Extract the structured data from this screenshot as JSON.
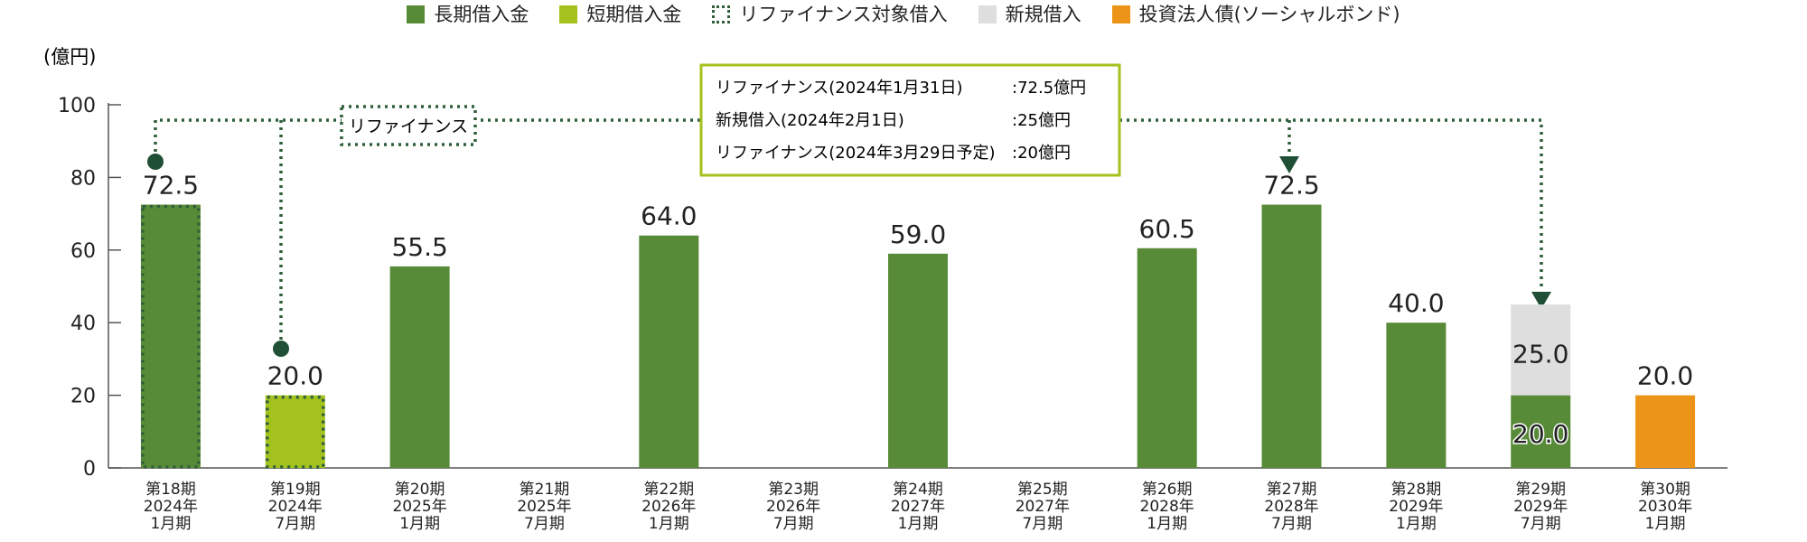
{
  "legend": [
    {
      "label": "長期借入金",
      "color": "#588b38",
      "style": "solid"
    },
    {
      "label": "短期借入金",
      "color": "#a4c21e",
      "style": "solid"
    },
    {
      "label": "リファイナンス対象借入",
      "color": "#2f5f3a",
      "style": "dotted"
    },
    {
      "label": "新規借入",
      "color": "#dedede",
      "style": "solid"
    },
    {
      "label": "投資法人債(ソーシャルボンド)",
      "color": "#ec9417",
      "style": "solid"
    }
  ],
  "refinance_label": "リファイナンス",
  "info_box": {
    "lines": [
      {
        "label": "リファイナンス(2024年1月31日)",
        "value": ":72.5億円"
      },
      {
        "label": "新規借入(2024年2月1日)",
        "value": ":25億円"
      },
      {
        "label": "リファイナンス(2024年3月29日予定)",
        "value": ":20億円"
      }
    ]
  },
  "colors": {
    "long": "#588b38",
    "short": "#a4c21e",
    "new": "#dedede",
    "bond": "#ec9417",
    "accent": "#2f5f3a",
    "box_border": "#a4c21e"
  },
  "chart_data": {
    "type": "bar",
    "stacked": true,
    "ylabel": "(億円)",
    "ylim": [
      0,
      100
    ],
    "yticks": [
      0,
      20,
      40,
      60,
      80,
      100
    ],
    "categories": [
      [
        "第18期",
        "2024年",
        "1月期"
      ],
      [
        "第19期",
        "2024年",
        "7月期"
      ],
      [
        "第20期",
        "2025年",
        "1月期"
      ],
      [
        "第21期",
        "2025年",
        "7月期"
      ],
      [
        "第22期",
        "2026年",
        "1月期"
      ],
      [
        "第23期",
        "2026年",
        "7月期"
      ],
      [
        "第24期",
        "2027年",
        "1月期"
      ],
      [
        "第25期",
        "2027年",
        "7月期"
      ],
      [
        "第26期",
        "2028年",
        "1月期"
      ],
      [
        "第27期",
        "2028年",
        "7月期"
      ],
      [
        "第28期",
        "2029年",
        "1月期"
      ],
      [
        "第29期",
        "2029年",
        "7月期"
      ],
      [
        "第30期",
        "2030年",
        "1月期"
      ]
    ],
    "series": [
      {
        "name": "長期借入金",
        "color": "#588b38",
        "values": [
          72.5,
          0,
          55.5,
          0,
          64.0,
          0,
          59.0,
          0,
          60.5,
          72.5,
          40.0,
          20.0,
          0
        ]
      },
      {
        "name": "短期借入金",
        "color": "#a4c21e",
        "values": [
          0,
          20.0,
          0,
          0,
          0,
          0,
          0,
          0,
          0,
          0,
          0,
          0,
          0
        ]
      },
      {
        "name": "新規借入",
        "color": "#dedede",
        "values": [
          0,
          0,
          0,
          0,
          0,
          0,
          0,
          0,
          0,
          0,
          0,
          25.0,
          0
        ]
      },
      {
        "name": "投資法人債(ソーシャルボンド)",
        "color": "#ec9417",
        "values": [
          0,
          0,
          0,
          0,
          0,
          0,
          0,
          0,
          0,
          0,
          0,
          0,
          20.0
        ]
      }
    ],
    "refinance_targets": [
      0,
      1
    ],
    "value_labels": [
      {
        "index": 0,
        "text": "72.5",
        "pos": "top"
      },
      {
        "index": 1,
        "text": "20.0",
        "pos": "top"
      },
      {
        "index": 2,
        "text": "55.5",
        "pos": "top"
      },
      {
        "index": 4,
        "text": "64.0",
        "pos": "top"
      },
      {
        "index": 6,
        "text": "59.0",
        "pos": "top"
      },
      {
        "index": 8,
        "text": "60.5",
        "pos": "top"
      },
      {
        "index": 9,
        "text": "72.5",
        "pos": "top"
      },
      {
        "index": 10,
        "text": "40.0",
        "pos": "top"
      },
      {
        "index": 11,
        "text": "25.0",
        "pos": "inside-new"
      },
      {
        "index": 11,
        "text": "20.0",
        "pos": "inside-long"
      },
      {
        "index": 12,
        "text": "20.0",
        "pos": "top"
      }
    ]
  }
}
